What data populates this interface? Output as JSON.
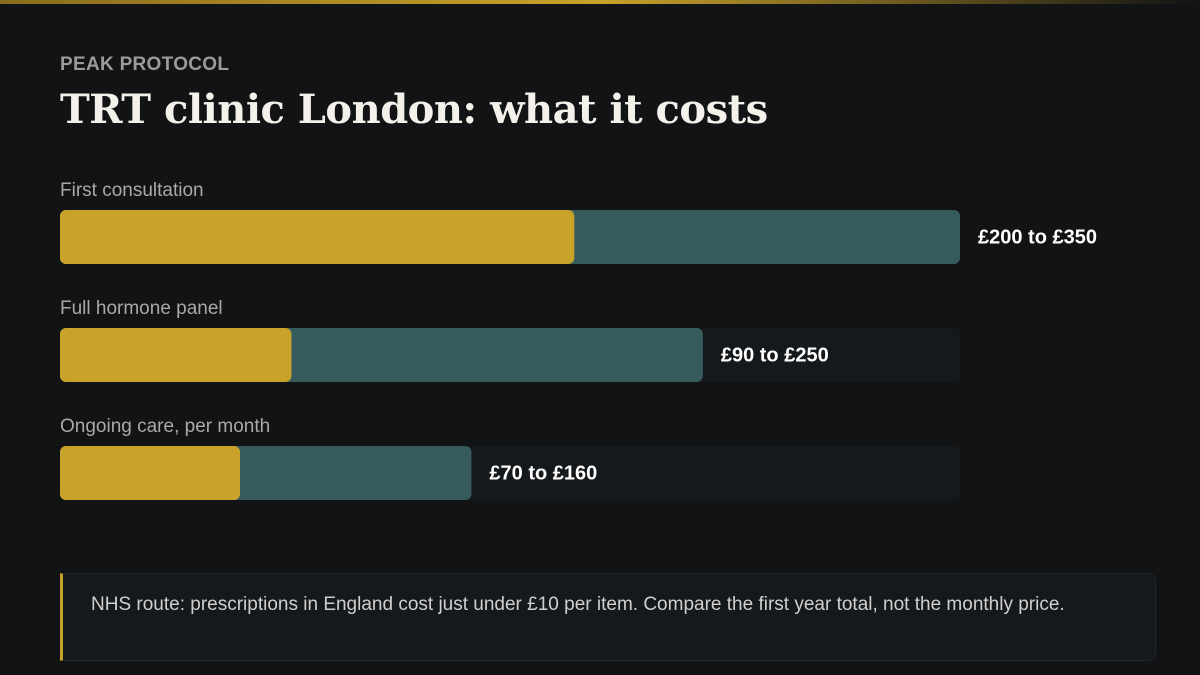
{
  "chart_data": {
    "type": "range_bar",
    "kicker": "PEAK PROTOCOL",
    "title": "TRT clinic London: what it costs",
    "categories": [
      "First consultation",
      "Full hormone panel",
      "Ongoing care, per month"
    ],
    "low": [
      200,
      90,
      70
    ],
    "high": [
      350,
      250,
      160
    ],
    "value_labels": [
      "£200 to £350",
      "£90 to £250",
      "£70 to £160"
    ],
    "low_color": "#c9a229",
    "high_color": "#355b5d",
    "xlim": [
      0,
      350
    ],
    "note": "NHS route: prescriptions in England cost just under £10 per item. Compare the first year total, not the monthly price."
  }
}
